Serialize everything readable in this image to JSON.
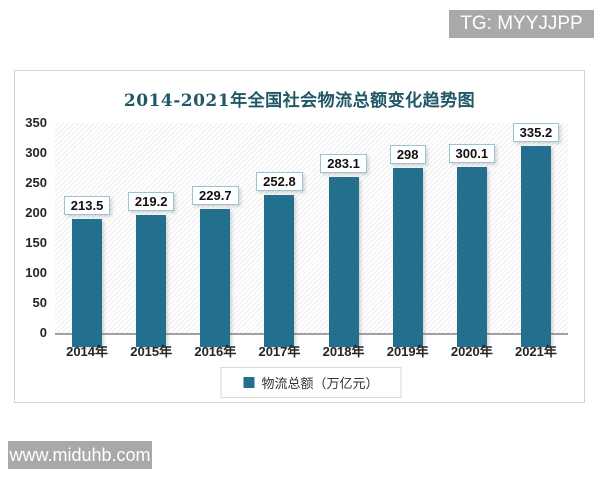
{
  "watermarks": {
    "telegram_badge": "TG: MYYJJPP",
    "website_badge": "www.miduhb.com"
  },
  "colors": {
    "bar": "#226F8E",
    "title": "#215868",
    "badge_bg": "#A9A9A9",
    "value_box_border": "#9CC3D3",
    "chart_border": "#D3D3D3",
    "axis_line": "#A0A0A0",
    "legend_border": "#D9D9D9"
  },
  "chart_data": {
    "type": "bar",
    "title": "2014-2021年全国社会物流总额变化趋势图",
    "categories": [
      "2014年",
      "2015年",
      "2016年",
      "2017年",
      "2018年",
      "2019年",
      "2020年",
      "2021年"
    ],
    "values": [
      213.5,
      219.2,
      229.7,
      252.8,
      283.1,
      298,
      300.1,
      335.2
    ],
    "value_labels": [
      "213.5",
      "219.2",
      "229.7",
      "252.8",
      "283.1",
      "298",
      "300.1",
      "335.2"
    ],
    "legend": "物流总额（万亿元）",
    "xlabel": "",
    "ylabel": "",
    "ylim": [
      0,
      350
    ],
    "yticks": [
      0,
      50,
      100,
      150,
      200,
      250,
      300,
      350
    ],
    "grid": false,
    "plot_background": "diagonal-hatch",
    "legend_position": "bottom"
  }
}
